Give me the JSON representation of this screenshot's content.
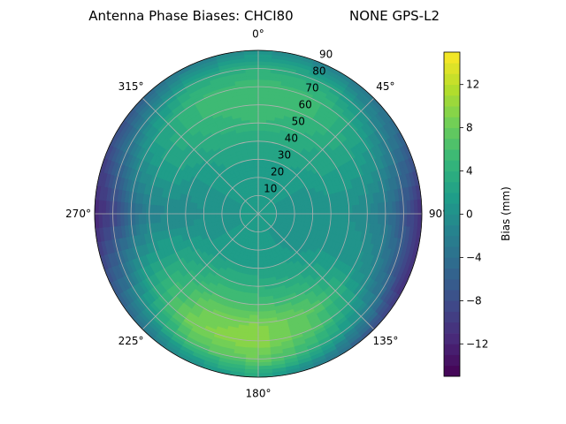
{
  "chart_data": {
    "type": "heatmap",
    "subtype": "polar-contour",
    "title_left": "Antenna Phase Biases: CHCI80",
    "title_right": "NONE GPS-L2",
    "angular_ticks": [
      "0°",
      "45°",
      "90°",
      "135°",
      "180°",
      "225°",
      "270°",
      "315°"
    ],
    "radial_ticks": [
      "10",
      "20",
      "30",
      "40",
      "50",
      "60",
      "70",
      "80",
      "90"
    ],
    "radial_range": [
      0,
      90
    ],
    "angular_direction": "clockwise",
    "angular_zero": "north",
    "grid": true,
    "colorbar": {
      "label": "Bias (mm)",
      "range": [
        -15,
        15
      ],
      "ticks": [
        "−12",
        "−8",
        "−4",
        "0",
        "4",
        "8",
        "12"
      ],
      "tick_values": [
        -12,
        -8,
        -4,
        0,
        4,
        8,
        12
      ],
      "level_step": 1,
      "colormap": "viridis"
    },
    "azimuth_deg": [
      0,
      30,
      60,
      90,
      120,
      150,
      180,
      210,
      240,
      270,
      300,
      330
    ],
    "zenith_deg": [
      0,
      10,
      20,
      30,
      40,
      50,
      60,
      70,
      80,
      90
    ],
    "values_mm": [
      [
        1,
        1,
        1,
        2,
        3,
        5,
        6,
        6,
        4,
        0
      ],
      [
        1,
        1,
        1,
        2,
        3,
        4,
        5,
        5,
        3,
        -2
      ],
      [
        1,
        1,
        1,
        1,
        2,
        2,
        2,
        1,
        -2,
        -5
      ],
      [
        1,
        1,
        0,
        0,
        0,
        0,
        -1,
        -3,
        -7,
        -11
      ],
      [
        1,
        1,
        0,
        0,
        1,
        1,
        1,
        -1,
        -5,
        -11
      ],
      [
        1,
        1,
        1,
        2,
        3,
        5,
        7,
        6,
        3,
        -4
      ],
      [
        1,
        1,
        1,
        2,
        4,
        6,
        9,
        10,
        8,
        3
      ],
      [
        1,
        1,
        1,
        2,
        4,
        6,
        8,
        9,
        6,
        -1
      ],
      [
        1,
        1,
        1,
        1,
        2,
        3,
        3,
        2,
        -2,
        -7
      ],
      [
        1,
        1,
        0,
        0,
        -1,
        -1,
        -2,
        -5,
        -9,
        -12
      ],
      [
        1,
        1,
        1,
        1,
        1,
        2,
        2,
        1,
        -3,
        -8
      ],
      [
        1,
        1,
        1,
        2,
        3,
        4,
        5,
        5,
        3,
        -3
      ]
    ]
  }
}
